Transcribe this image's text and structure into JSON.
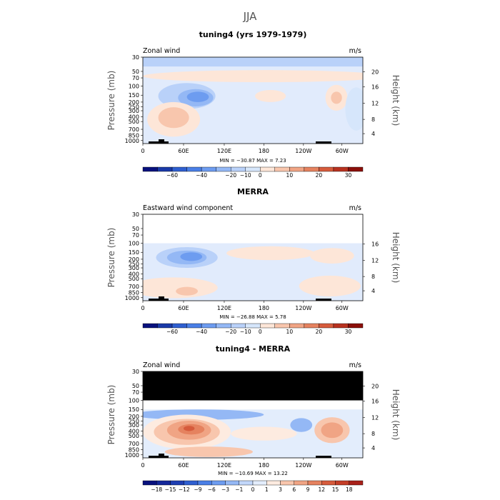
{
  "page_title": "JJA",
  "colors": {
    "neg_base": "#d8e6fb",
    "pos_base": "#fbe1d2",
    "black": "#000000"
  },
  "chart_data": [
    {
      "type": "heatmap",
      "title": "tuning4 (yrs 1979-1979)",
      "left_label": "Zonal wind",
      "right_label": "m/s",
      "ylabel_left": "Pressure (mb)",
      "ylabel_right": "Height (km)",
      "pressure_ticks": [
        "30",
        "50",
        "70",
        "100",
        "150",
        "200",
        "250",
        "300",
        "400",
        "500",
        "700",
        "850",
        "1000"
      ],
      "height_ticks": [
        "20",
        "16",
        "12",
        "8",
        "4"
      ],
      "lon_ticks": [
        "0",
        "60E",
        "120E",
        "180",
        "120W",
        "60W"
      ],
      "min_max": "MIN = −30.87   MAX =   7.23",
      "colorbar_labels": [
        "−60",
        "−40",
        "−20",
        "−10",
        "0",
        "10",
        "20",
        "30"
      ],
      "colorbar_colors": [
        "#08117e",
        "#1a3aa8",
        "#2f5fd0",
        "#4a7fe6",
        "#6d9cf0",
        "#94b8f5",
        "#b9d1f9",
        "#d6e6fb",
        "#fde6d8",
        "#f8c6ad",
        "#f0a484",
        "#e5825f",
        "#d65b3c",
        "#b83220",
        "#8b0f0a"
      ],
      "top_band": true,
      "black_top": false
    },
    {
      "type": "heatmap",
      "title": "MERRA",
      "left_label": "Eastward wind component",
      "right_label": "m/s",
      "ylabel_left": "Pressure (mb)",
      "ylabel_right": "Height (km)",
      "pressure_ticks": [
        "30",
        "50",
        "70",
        "100",
        "150",
        "200",
        "250",
        "300",
        "400",
        "500",
        "700",
        "850",
        "1000"
      ],
      "height_ticks": [
        "16",
        "12",
        "8",
        "4"
      ],
      "lon_ticks": [
        "0",
        "60E",
        "120E",
        "180",
        "120W",
        "60W"
      ],
      "min_max": "MIN = −26.88   MAX =   5.78",
      "colorbar_labels": [
        "−60",
        "−40",
        "−20",
        "−10",
        "0",
        "10",
        "20",
        "30"
      ],
      "colorbar_colors": [
        "#08117e",
        "#1a3aa8",
        "#2f5fd0",
        "#4a7fe6",
        "#6d9cf0",
        "#94b8f5",
        "#b9d1f9",
        "#d6e6fb",
        "#fde6d8",
        "#f8c6ad",
        "#f0a484",
        "#e5825f",
        "#d65b3c",
        "#b83220",
        "#8b0f0a"
      ],
      "top_band": false,
      "black_top": false
    },
    {
      "type": "heatmap",
      "title": "tuning4 - MERRA",
      "left_label": "Zonal wind",
      "right_label": "m/s",
      "ylabel_left": "Pressure (mb)",
      "ylabel_right": "Height (km)",
      "pressure_ticks": [
        "30",
        "50",
        "70",
        "100",
        "150",
        "200",
        "250",
        "300",
        "400",
        "500",
        "700",
        "850",
        "1000"
      ],
      "height_ticks": [
        "20",
        "16",
        "12",
        "8",
        "4"
      ],
      "lon_ticks": [
        "0",
        "60E",
        "120E",
        "180",
        "120W",
        "60W"
      ],
      "min_max": "MIN = −10.69   MAX =  13.22",
      "colorbar_labels": [
        "−18",
        "−15",
        "−12",
        "−9",
        "−6",
        "−3",
        "−1",
        "0",
        "1",
        "3",
        "6",
        "9",
        "12",
        "15",
        "18"
      ],
      "colorbar_colors": [
        "#08117e",
        "#14289a",
        "#1f3eb2",
        "#2f5fd0",
        "#4a7fe6",
        "#6d9cf0",
        "#94b8f5",
        "#c2d7fa",
        "#e3edfc",
        "#fdebe0",
        "#f8c6ad",
        "#f0a484",
        "#e5825f",
        "#d65b3c",
        "#c43e28",
        "#a8211a"
      ],
      "top_band": false,
      "black_top": true
    }
  ]
}
